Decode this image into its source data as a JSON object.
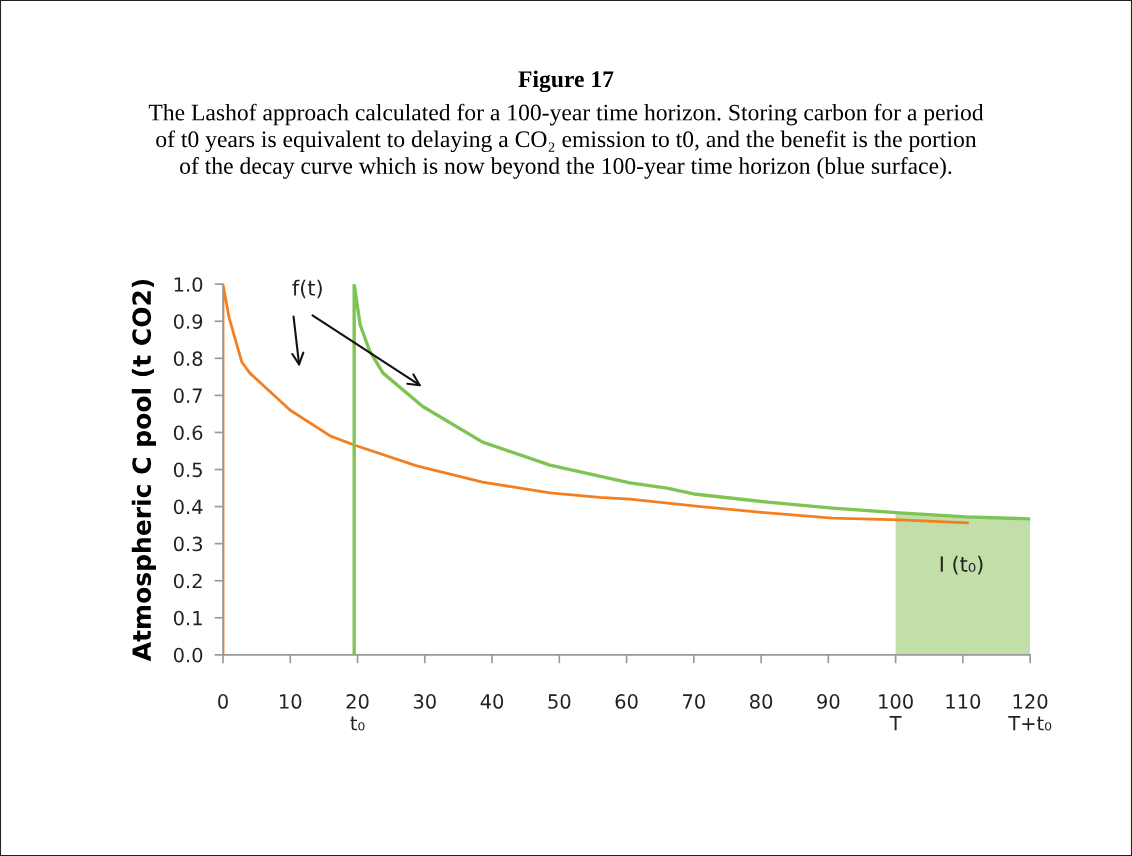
{
  "chart_data": {
    "type": "line",
    "title": "Figure 17",
    "subtitle": "The Lashof approach calculated for a 100-year time horizon. Storing carbon for a period\nof t0 years is equivalent to delaying a CO₂ emission to t0, and the benefit is the portion\nof the decay curve which is now beyond the 100-year time horizon (blue surface).",
    "ylabel": "Atmospheric C pool (t CO2)",
    "series": [
      {
        "type": "area",
        "color": "#c3dfa9",
        "x": [
          100,
          110.5,
          120
        ],
        "values": [
          0.383,
          0.372,
          0.367
        ]
      },
      {
        "color": "#f47f20",
        "x": [
          0,
          0,
          0.9,
          2.8,
          4,
          10,
          16,
          19.5,
          28.8,
          38.6,
          48.6,
          56,
          60.5,
          71,
          81,
          90.6,
          100.6,
          110.7
        ],
        "values": [
          0,
          1.0,
          0.91,
          0.79,
          0.76,
          0.66,
          0.59,
          0.566,
          0.51,
          0.466,
          0.437,
          0.425,
          0.42,
          0.4,
          0.383,
          0.369,
          0.364,
          0.356
        ]
      },
      {
        "color": "#7dc452",
        "x": [
          19.5,
          19.5,
          20.4,
          21.8,
          23.8,
          29.7,
          38.6,
          48.6,
          60.5,
          66,
          70,
          81,
          90.6,
          100.6,
          110.5,
          120
        ],
        "values": [
          0,
          1.0,
          0.89,
          0.82,
          0.76,
          0.67,
          0.574,
          0.512,
          0.464,
          0.45,
          0.434,
          0.412,
          0.396,
          0.383,
          0.372,
          0.367
        ]
      }
    ],
    "xlim": [
      0,
      120
    ],
    "xticks": [
      0,
      10,
      {
        "value": 20,
        "label": "20\nt₀"
      },
      30,
      40,
      50,
      60,
      70,
      80,
      90,
      {
        "value": 100,
        "label": "100\nT"
      },
      110,
      {
        "value": 120,
        "label": "120\nT+t₀"
      }
    ],
    "ylim": [
      0,
      1.0
    ],
    "yticks": [
      {
        "value": 0,
        "label": "0.0"
      },
      {
        "value": 0.1,
        "label": "0.1"
      },
      {
        "value": 0.2,
        "label": "0.2"
      },
      {
        "value": 0.3,
        "label": "0.3"
      },
      {
        "value": 0.4,
        "label": "0.4"
      },
      {
        "value": 0.5,
        "label": "0.5"
      },
      {
        "value": 0.6,
        "label": "0.6"
      },
      {
        "value": 0.7,
        "label": "0.7"
      },
      {
        "value": 0.8,
        "label": "0.8"
      },
      {
        "value": 0.9,
        "label": "0.9"
      },
      {
        "value": 1.0,
        "label": "1.0"
      }
    ],
    "annotations": [
      "f(t)",
      "I (t₀)"
    ],
    "grid": false,
    "legend": false
  }
}
